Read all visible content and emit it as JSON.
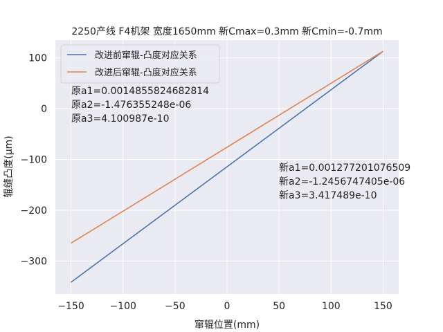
{
  "chart_data": {
    "type": "line",
    "title": "2250产线 F4机架 宽度1650mm 新Cmax=0.3mm 新Cmin=-0.7mm",
    "xlabel": "窜辊位置(mm)",
    "ylabel": "辊缝凸度(μm)",
    "xlim": [
      -165,
      165
    ],
    "ylim": [
      -365,
      135
    ],
    "xticks": [
      -150,
      -100,
      -50,
      0,
      50,
      100,
      150
    ],
    "yticks": [
      -300,
      -200,
      -100,
      0,
      100
    ],
    "grid": true,
    "legend_position": "top-left",
    "series": [
      {
        "name": "改进前窜辊-凸度对应关系",
        "color": "#4c72b0",
        "x": [
          -150,
          150
        ],
        "y": [
          -342,
          113
        ]
      },
      {
        "name": "改进后窜辊-凸度对应关系",
        "color": "#dd8452",
        "x": [
          -150,
          150
        ],
        "y": [
          -265,
          113
        ]
      }
    ],
    "annotations": [
      {
        "lines": [
          "原a1=0.0014855824682814",
          "原a2=-1.476355248e-06",
          "原a3=4.100987e-10"
        ]
      },
      {
        "lines": [
          "新a1=0.001277201076509",
          "新a2=-1.2456747405e-06",
          "新a3=3.417489e-10"
        ]
      }
    ]
  }
}
